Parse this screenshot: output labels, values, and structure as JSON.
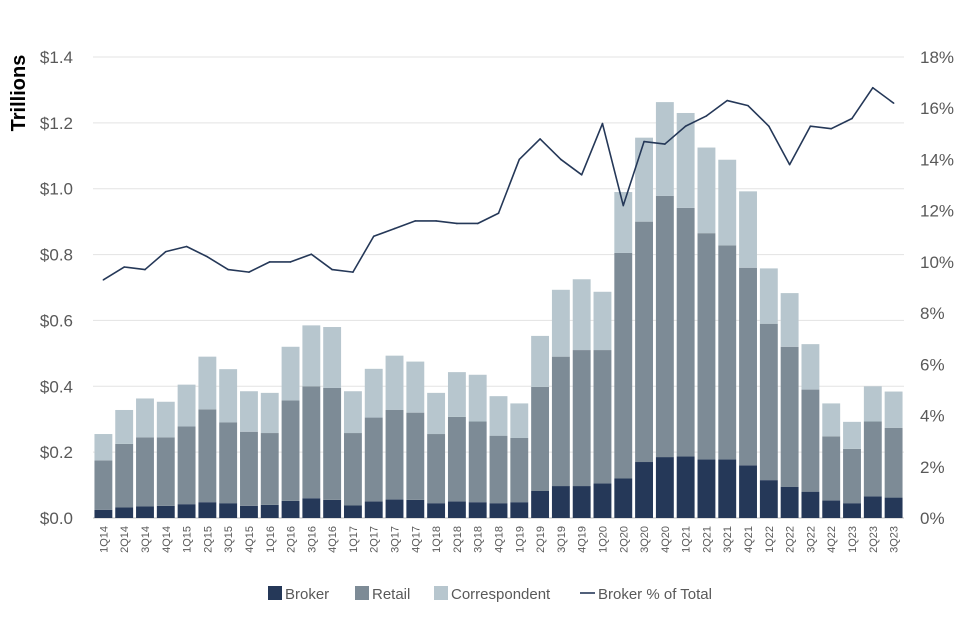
{
  "chart_data": {
    "type": "bar",
    "stacked": true,
    "ylabel": "Trillions",
    "y_left": {
      "min": 0,
      "max": 1.4,
      "ticks": [
        0,
        0.2,
        0.4,
        0.6,
        0.8,
        1.0,
        1.2,
        1.4
      ],
      "tick_labels": [
        "$0.0",
        "$0.2",
        "$0.4",
        "$0.6",
        "$0.8",
        "$1.0",
        "$1.2",
        "$1.4"
      ]
    },
    "y_right": {
      "min": 0,
      "max": 18,
      "ticks": [
        0,
        2,
        4,
        6,
        8,
        10,
        12,
        14,
        16,
        18
      ],
      "tick_labels": [
        "0%",
        "2%",
        "4%",
        "6%",
        "8%",
        "10%",
        "12%",
        "14%",
        "16%",
        "18%"
      ]
    },
    "categories": [
      "1Q14",
      "2Q14",
      "3Q14",
      "4Q14",
      "1Q15",
      "2Q15",
      "3Q15",
      "4Q15",
      "1Q16",
      "2Q16",
      "3Q16",
      "4Q16",
      "1Q17",
      "2Q17",
      "3Q17",
      "4Q17",
      "1Q18",
      "2Q18",
      "3Q18",
      "4Q18",
      "1Q19",
      "2Q19",
      "3Q19",
      "4Q19",
      "1Q20",
      "2Q20",
      "3Q20",
      "4Q20",
      "1Q21",
      "2Q21",
      "3Q21",
      "4Q21",
      "1Q22",
      "2Q22",
      "3Q22",
      "4Q22",
      "1Q23",
      "2Q23",
      "3Q23"
    ],
    "series": [
      {
        "name": "Broker",
        "color": "#253858",
        "axis": "left",
        "kind": "bar",
        "values": [
          0.025,
          0.032,
          0.035,
          0.037,
          0.042,
          0.048,
          0.045,
          0.037,
          0.04,
          0.052,
          0.06,
          0.055,
          0.038,
          0.05,
          0.056,
          0.055,
          0.045,
          0.05,
          0.048,
          0.045,
          0.048,
          0.082,
          0.097,
          0.097,
          0.105,
          0.12,
          0.17,
          0.185,
          0.187,
          0.178,
          0.178,
          0.16,
          0.115,
          0.095,
          0.08,
          0.053,
          0.045,
          0.066,
          0.062
        ]
      },
      {
        "name": "Retail",
        "color": "#7d8b96",
        "axis": "left",
        "kind": "bar",
        "values": [
          0.15,
          0.193,
          0.21,
          0.208,
          0.236,
          0.282,
          0.245,
          0.225,
          0.218,
          0.305,
          0.34,
          0.34,
          0.22,
          0.255,
          0.272,
          0.265,
          0.21,
          0.257,
          0.245,
          0.205,
          0.195,
          0.316,
          0.393,
          0.413,
          0.405,
          0.685,
          0.73,
          0.793,
          0.755,
          0.687,
          0.65,
          0.6,
          0.475,
          0.425,
          0.31,
          0.195,
          0.165,
          0.227,
          0.212
        ]
      },
      {
        "name": "Correspondent",
        "color": "#b7c6ce",
        "axis": "left",
        "kind": "bar",
        "values": [
          0.08,
          0.103,
          0.118,
          0.108,
          0.127,
          0.16,
          0.162,
          0.123,
          0.122,
          0.163,
          0.185,
          0.185,
          0.127,
          0.148,
          0.165,
          0.155,
          0.125,
          0.136,
          0.142,
          0.12,
          0.105,
          0.155,
          0.203,
          0.215,
          0.177,
          0.185,
          0.255,
          0.285,
          0.288,
          0.26,
          0.26,
          0.232,
          0.168,
          0.163,
          0.138,
          0.1,
          0.082,
          0.107,
          0.11
        ]
      },
      {
        "name": "Broker % of Total",
        "color": "#253858",
        "axis": "right",
        "kind": "line",
        "values": [
          9.3,
          9.8,
          9.7,
          10.4,
          10.6,
          10.2,
          9.7,
          9.6,
          10.0,
          10.0,
          10.3,
          9.7,
          9.6,
          11.0,
          11.3,
          11.6,
          11.6,
          11.5,
          11.5,
          11.9,
          14.0,
          14.8,
          14.0,
          13.4,
          15.4,
          12.2,
          14.7,
          14.6,
          15.3,
          15.7,
          16.3,
          16.1,
          15.3,
          13.8,
          15.3,
          15.2,
          15.6,
          16.8,
          16.2
        ]
      }
    ],
    "legend": {
      "position": "bottom",
      "entries": [
        "Broker",
        "Retail",
        "Correspondent",
        "Broker % of Total"
      ]
    }
  }
}
